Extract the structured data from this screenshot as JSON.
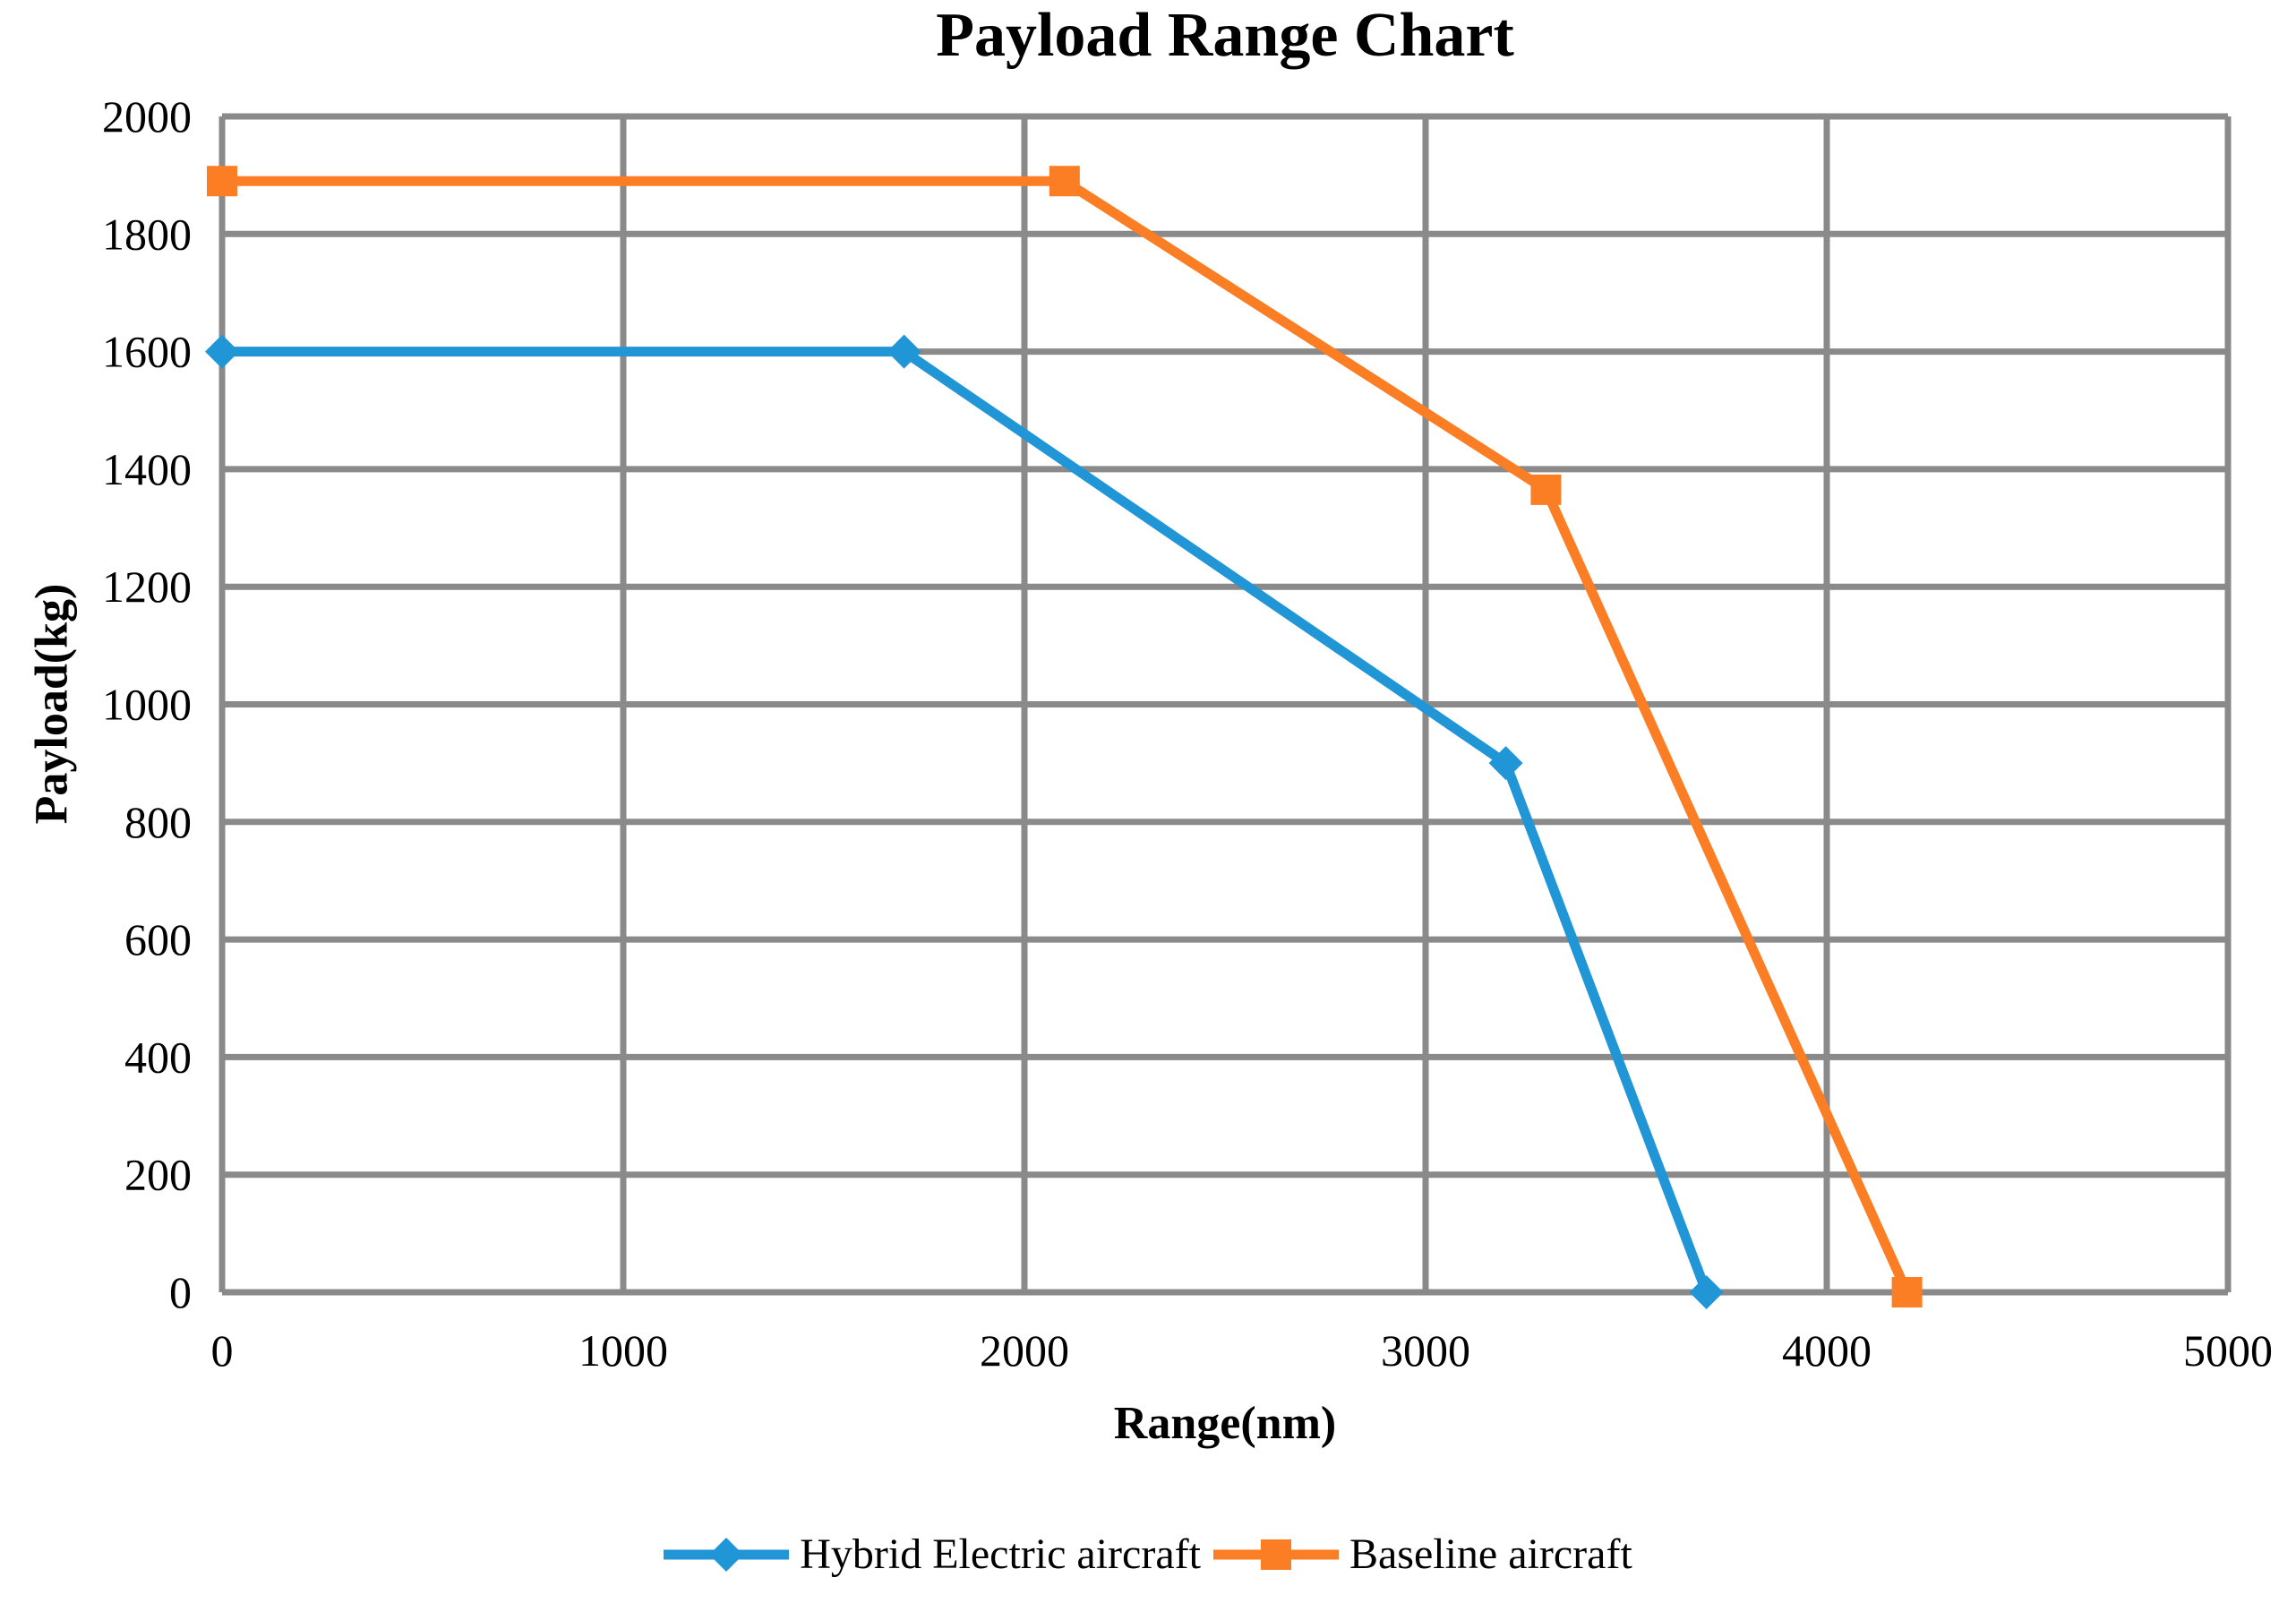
{
  "chart_data": {
    "type": "line",
    "title": "Payload Range Chart",
    "xlabel": "Range(nm)",
    "ylabel": "Payload(kg)",
    "xlim": [
      0,
      5000
    ],
    "ylim": [
      0,
      2000
    ],
    "x_ticks": [
      "0",
      "1000",
      "2000",
      "3000",
      "4000",
      "5000"
    ],
    "y_ticks": [
      "0",
      "200",
      "400",
      "600",
      "800",
      "1000",
      "1200",
      "1400",
      "1600",
      "1800",
      "2000"
    ],
    "grid": true,
    "grid_color": "#8A8A8A",
    "legend_position": "bottom",
    "series": [
      {
        "name": "Hybrid Electric aircraft",
        "color": "#2196D6",
        "marker": "diamond",
        "points": [
          [
            0,
            1600
          ],
          [
            1700,
            1600
          ],
          [
            3200,
            900
          ],
          [
            3700,
            0
          ]
        ]
      },
      {
        "name": "Baseline aircraft",
        "color": "#FB7D24",
        "marker": "square",
        "points": [
          [
            0,
            1890
          ],
          [
            2100,
            1890
          ],
          [
            3300,
            1365
          ],
          [
            4200,
            0
          ]
        ]
      }
    ]
  }
}
